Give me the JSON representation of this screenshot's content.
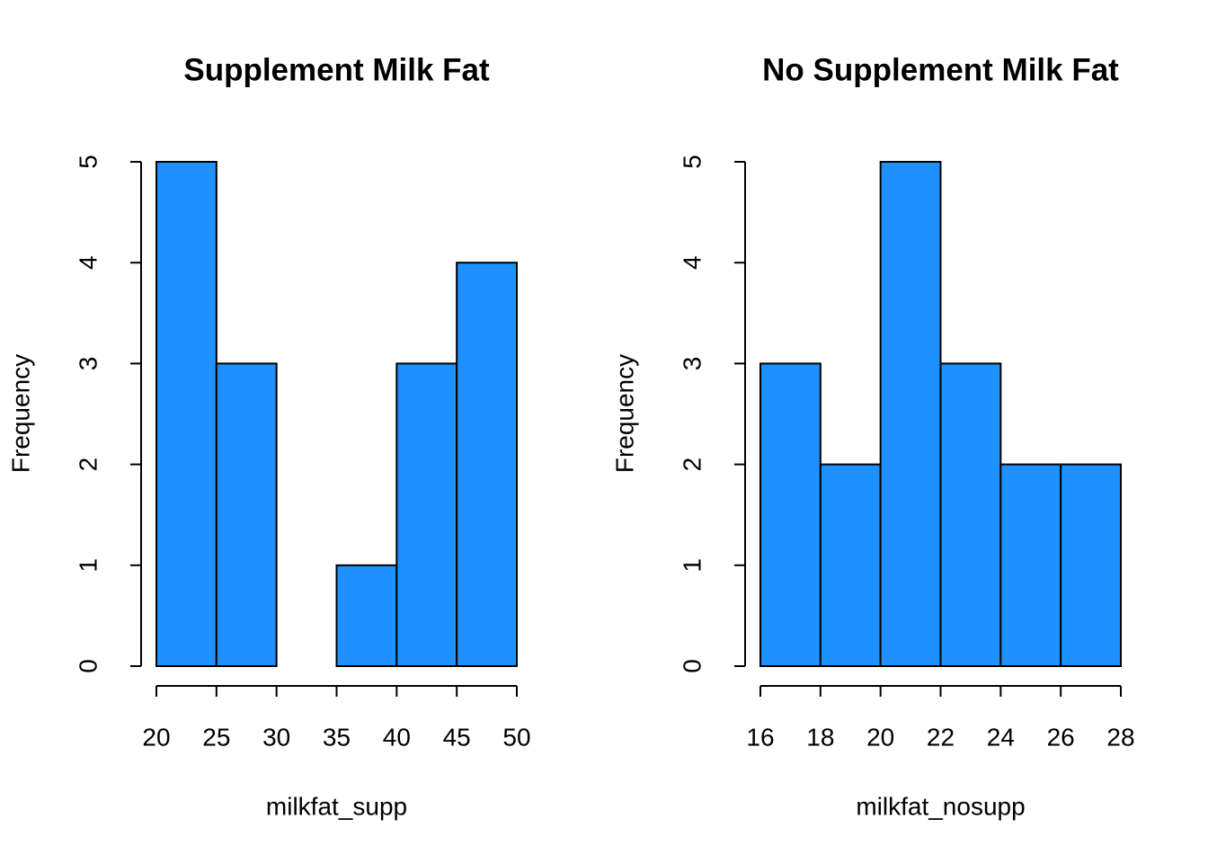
{
  "chart_data": [
    {
      "type": "histogram",
      "title": "Supplement Milk Fat",
      "xlabel": "milkfat_supp",
      "ylabel": "Frequency",
      "bins": [
        20,
        25,
        30,
        35,
        40,
        45,
        50
      ],
      "values": [
        5,
        3,
        0,
        1,
        3,
        4
      ],
      "color": "#1e90ff",
      "xlim": [
        20,
        50
      ],
      "ylim": [
        0,
        5
      ],
      "xticks": [
        20,
        25,
        30,
        35,
        40,
        45,
        50
      ],
      "yticks": [
        0,
        1,
        2,
        3,
        4,
        5
      ]
    },
    {
      "type": "histogram",
      "title": "No Supplement Milk Fat",
      "xlabel": "milkfat_nosupp",
      "ylabel": "Frequency",
      "bins": [
        16,
        18,
        20,
        22,
        24,
        26,
        28
      ],
      "values": [
        3,
        2,
        5,
        3,
        2,
        2
      ],
      "color": "#1e90ff",
      "xlim": [
        16,
        28
      ],
      "ylim": [
        0,
        5
      ],
      "xticks": [
        16,
        18,
        20,
        22,
        24,
        26,
        28
      ],
      "yticks": [
        0,
        1,
        2,
        3,
        4,
        5
      ]
    }
  ]
}
